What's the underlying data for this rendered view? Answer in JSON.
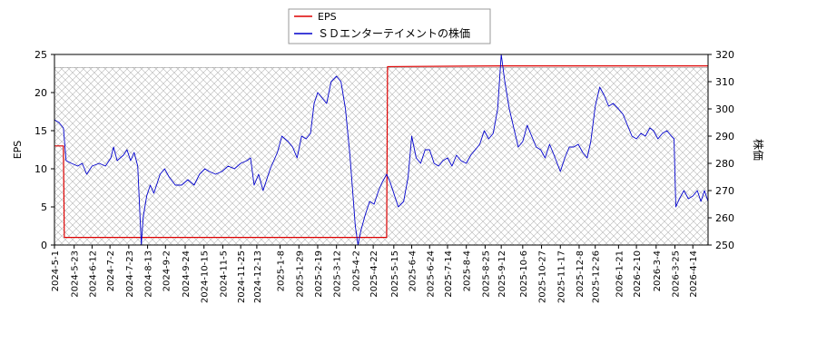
{
  "chart_data": {
    "type": "line",
    "title": "",
    "legend": {
      "placement": "top-center",
      "entries": [
        {
          "label": "EPS",
          "color": "#dd0000"
        },
        {
          "label": "ＳＤエンターテイメントの株価",
          "color": "#0000cc"
        }
      ]
    },
    "left_axis": {
      "label": "EPS",
      "min": 0,
      "max": 25,
      "ticks": [
        "0",
        "5",
        "10",
        "15",
        "20",
        "25"
      ]
    },
    "right_axis": {
      "label": "株価",
      "min": 250,
      "max": 320,
      "ticks": [
        "250",
        "260",
        "270",
        "280",
        "290",
        "300",
        "310",
        "320"
      ]
    },
    "x_axis": {
      "start": "2024-05-01",
      "end": "2026-05-01",
      "tick_labels": [
        "2024-5-1",
        "2024-5-23",
        "2024-6-12",
        "2024-7-2",
        "2024-7-23",
        "2024-8-13",
        "2024-9-2",
        "2024-9-24",
        "2024-10-15",
        "2024-11-5",
        "2024-11-25",
        "2024-12-13",
        "2025-1-8",
        "2025-1-29",
        "2025-2-19",
        "2025-3-12",
        "2025-4-2",
        "2025-4-22",
        "2025-5-15",
        "2025-6-4",
        "2025-6-24",
        "2025-7-14",
        "2025-8-4",
        "2025-8-25",
        "2025-9-12",
        "2025-10-6",
        "2025-10-27",
        "2025-11-17",
        "2025-12-8",
        "2025-12-26",
        "2026-1-21",
        "2026-2-10",
        "2026-3-4",
        "2026-3-25",
        "2026-4-14"
      ]
    },
    "hatched_region": {
      "start": "2024-05-01",
      "end": "2026-05-01",
      "y_top": 23.3
    },
    "series": [
      {
        "name": "EPS",
        "axis": "left",
        "color": "#dd0000",
        "points": [
          [
            "2024-05-01",
            13
          ],
          [
            "2024-05-11",
            13
          ],
          [
            "2024-05-12",
            1
          ],
          [
            "2025-05-07",
            1
          ],
          [
            "2025-05-08",
            23.4
          ],
          [
            "2025-09-12",
            23.5
          ],
          [
            "2026-05-01",
            23.5
          ]
        ]
      },
      {
        "name": "ＳＤエンターテイメントの株価",
        "axis": "right",
        "color": "#0000cc",
        "points": [
          [
            "2024-05-01",
            296
          ],
          [
            "2024-05-06",
            295
          ],
          [
            "2024-05-11",
            293
          ],
          [
            "2024-05-14",
            281
          ],
          [
            "2024-05-20",
            280
          ],
          [
            "2024-05-27",
            279
          ],
          [
            "2024-06-01",
            280
          ],
          [
            "2024-06-06",
            276
          ],
          [
            "2024-06-12",
            279
          ],
          [
            "2024-06-20",
            280
          ],
          [
            "2024-06-27",
            279
          ],
          [
            "2024-07-03",
            282
          ],
          [
            "2024-07-06",
            286
          ],
          [
            "2024-07-10",
            281
          ],
          [
            "2024-07-17",
            283
          ],
          [
            "2024-07-21",
            285
          ],
          [
            "2024-07-25",
            281
          ],
          [
            "2024-07-29",
            284
          ],
          [
            "2024-08-02",
            279
          ],
          [
            "2024-08-06",
            250
          ],
          [
            "2024-08-08",
            260
          ],
          [
            "2024-08-12",
            268
          ],
          [
            "2024-08-16",
            272
          ],
          [
            "2024-08-20",
            269
          ],
          [
            "2024-08-27",
            276
          ],
          [
            "2024-09-01",
            278
          ],
          [
            "2024-09-06",
            275
          ],
          [
            "2024-09-13",
            272
          ],
          [
            "2024-09-20",
            272
          ],
          [
            "2024-09-27",
            274
          ],
          [
            "2024-10-04",
            272
          ],
          [
            "2024-10-10",
            276
          ],
          [
            "2024-10-16",
            278
          ],
          [
            "2024-10-21",
            277
          ],
          [
            "2024-10-28",
            276
          ],
          [
            "2024-11-04",
            277
          ],
          [
            "2024-11-11",
            279
          ],
          [
            "2024-11-18",
            278
          ],
          [
            "2024-11-25",
            280
          ],
          [
            "2024-12-02",
            281
          ],
          [
            "2024-12-06",
            282
          ],
          [
            "2024-12-10",
            272
          ],
          [
            "2024-12-15",
            276
          ],
          [
            "2024-12-20",
            270
          ],
          [
            "2024-12-28",
            278
          ],
          [
            "2025-01-05",
            284
          ],
          [
            "2025-01-10",
            290
          ],
          [
            "2025-01-17",
            288
          ],
          [
            "2025-01-22",
            286
          ],
          [
            "2025-01-27",
            282
          ],
          [
            "2025-02-01",
            290
          ],
          [
            "2025-02-06",
            289
          ],
          [
            "2025-02-11",
            291
          ],
          [
            "2025-02-15",
            302
          ],
          [
            "2025-02-19",
            306
          ],
          [
            "2025-02-24",
            304
          ],
          [
            "2025-03-01",
            302
          ],
          [
            "2025-03-06",
            310
          ],
          [
            "2025-03-12",
            312
          ],
          [
            "2025-03-17",
            310
          ],
          [
            "2025-03-22",
            300
          ],
          [
            "2025-03-27",
            283
          ],
          [
            "2025-04-02",
            257
          ],
          [
            "2025-04-05",
            250
          ],
          [
            "2025-04-08",
            255
          ],
          [
            "2025-04-13",
            261
          ],
          [
            "2025-04-18",
            266
          ],
          [
            "2025-04-23",
            265
          ],
          [
            "2025-04-28",
            270
          ],
          [
            "2025-05-02",
            273
          ],
          [
            "2025-05-07",
            276
          ],
          [
            "2025-05-11",
            273
          ],
          [
            "2025-05-16",
            268
          ],
          [
            "2025-05-20",
            264
          ],
          [
            "2025-05-26",
            266
          ],
          [
            "2025-05-31",
            275
          ],
          [
            "2025-06-04",
            290
          ],
          [
            "2025-06-09",
            282
          ],
          [
            "2025-06-14",
            280
          ],
          [
            "2025-06-19",
            285
          ],
          [
            "2025-06-24",
            285
          ],
          [
            "2025-06-29",
            280
          ],
          [
            "2025-07-04",
            279
          ],
          [
            "2025-07-09",
            281
          ],
          [
            "2025-07-14",
            282
          ],
          [
            "2025-07-19",
            279
          ],
          [
            "2025-07-24",
            283
          ],
          [
            "2025-07-29",
            281
          ],
          [
            "2025-08-04",
            280
          ],
          [
            "2025-08-09",
            283
          ],
          [
            "2025-08-14",
            285
          ],
          [
            "2025-08-19",
            287
          ],
          [
            "2025-08-24",
            292
          ],
          [
            "2025-08-29",
            289
          ],
          [
            "2025-09-03",
            291
          ],
          [
            "2025-09-08",
            300
          ],
          [
            "2025-09-12",
            320
          ],
          [
            "2025-09-16",
            310
          ],
          [
            "2025-09-21",
            300
          ],
          [
            "2025-09-26",
            293
          ],
          [
            "2025-10-01",
            286
          ],
          [
            "2025-10-06",
            288
          ],
          [
            "2025-10-11",
            294
          ],
          [
            "2025-10-16",
            290
          ],
          [
            "2025-10-21",
            286
          ],
          [
            "2025-10-26",
            285
          ],
          [
            "2025-10-31",
            282
          ],
          [
            "2025-11-05",
            287
          ],
          [
            "2025-11-10",
            283
          ],
          [
            "2025-11-17",
            277
          ],
          [
            "2025-11-22",
            282
          ],
          [
            "2025-11-27",
            286
          ],
          [
            "2025-12-02",
            286
          ],
          [
            "2025-12-07",
            287
          ],
          [
            "2025-12-12",
            284
          ],
          [
            "2025-12-17",
            282
          ],
          [
            "2025-12-21",
            288
          ],
          [
            "2025-12-26",
            301
          ],
          [
            "2025-12-31",
            308
          ],
          [
            "2026-01-05",
            305
          ],
          [
            "2026-01-10",
            301
          ],
          [
            "2026-01-15",
            302
          ],
          [
            "2026-01-21",
            300
          ],
          [
            "2026-01-26",
            298
          ],
          [
            "2026-01-31",
            294
          ],
          [
            "2026-02-05",
            290
          ],
          [
            "2026-02-10",
            289
          ],
          [
            "2026-02-15",
            291
          ],
          [
            "2026-02-20",
            290
          ],
          [
            "2026-02-25",
            293
          ],
          [
            "2026-03-01",
            292
          ],
          [
            "2026-03-06",
            289
          ],
          [
            "2026-03-11",
            291
          ],
          [
            "2026-03-16",
            292
          ],
          [
            "2026-03-21",
            290
          ],
          [
            "2026-03-24",
            289
          ],
          [
            "2026-03-26",
            264
          ],
          [
            "2026-03-30",
            267
          ],
          [
            "2026-04-04",
            270
          ],
          [
            "2026-04-09",
            267
          ],
          [
            "2026-04-14",
            268
          ],
          [
            "2026-04-19",
            270
          ],
          [
            "2026-04-23",
            266
          ],
          [
            "2026-04-27",
            270
          ],
          [
            "2026-05-01",
            266
          ]
        ]
      }
    ]
  }
}
